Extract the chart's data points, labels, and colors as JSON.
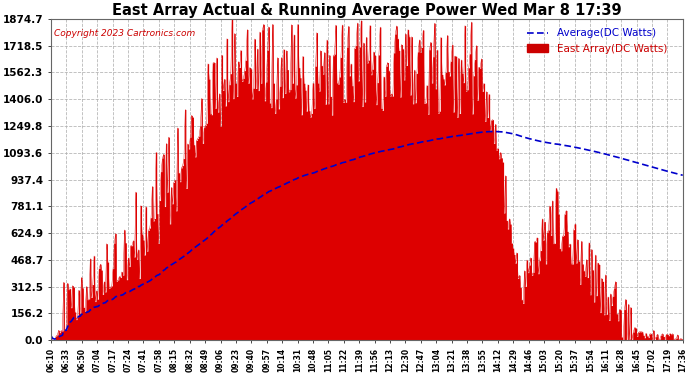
{
  "title": "East Array Actual & Running Average Power Wed Mar 8 17:39",
  "copyright": "Copyright 2023 Cartronics.com",
  "legend_avg": "Average(DC Watts)",
  "legend_east": "East Array(DC Watts)",
  "ymax": 1874.7,
  "ymin": 0.0,
  "yticks": [
    0.0,
    156.2,
    312.5,
    468.7,
    624.9,
    781.1,
    937.4,
    1093.6,
    1249.8,
    1406.0,
    1562.3,
    1718.5,
    1874.7
  ],
  "xtick_labels": [
    "06:10",
    "06:33",
    "06:50",
    "07:04",
    "07:17",
    "07:24",
    "07:41",
    "07:58",
    "08:15",
    "08:32",
    "08:49",
    "09:06",
    "09:23",
    "09:40",
    "09:57",
    "10:14",
    "10:31",
    "10:48",
    "11:05",
    "11:22",
    "11:39",
    "11:56",
    "12:13",
    "12:30",
    "12:47",
    "13:04",
    "13:21",
    "13:38",
    "13:55",
    "14:12",
    "14:29",
    "14:46",
    "15:03",
    "15:20",
    "15:37",
    "15:54",
    "16:11",
    "16:28",
    "16:45",
    "17:02",
    "17:19",
    "17:36"
  ],
  "background_color": "#ffffff",
  "grid_color": "#b0b0b0",
  "fill_color": "#dd0000",
  "line_color": "#0000cc",
  "title_color": "#000000",
  "copyright_color": "#cc0000",
  "legend_avg_color": "#0000cc",
  "legend_east_color": "#cc0000",
  "title_fontsize": 10.5,
  "copyright_fontsize": 6.5,
  "legend_fontsize": 7.5,
  "ytick_fontsize": 7.5,
  "xtick_fontsize": 5.5
}
